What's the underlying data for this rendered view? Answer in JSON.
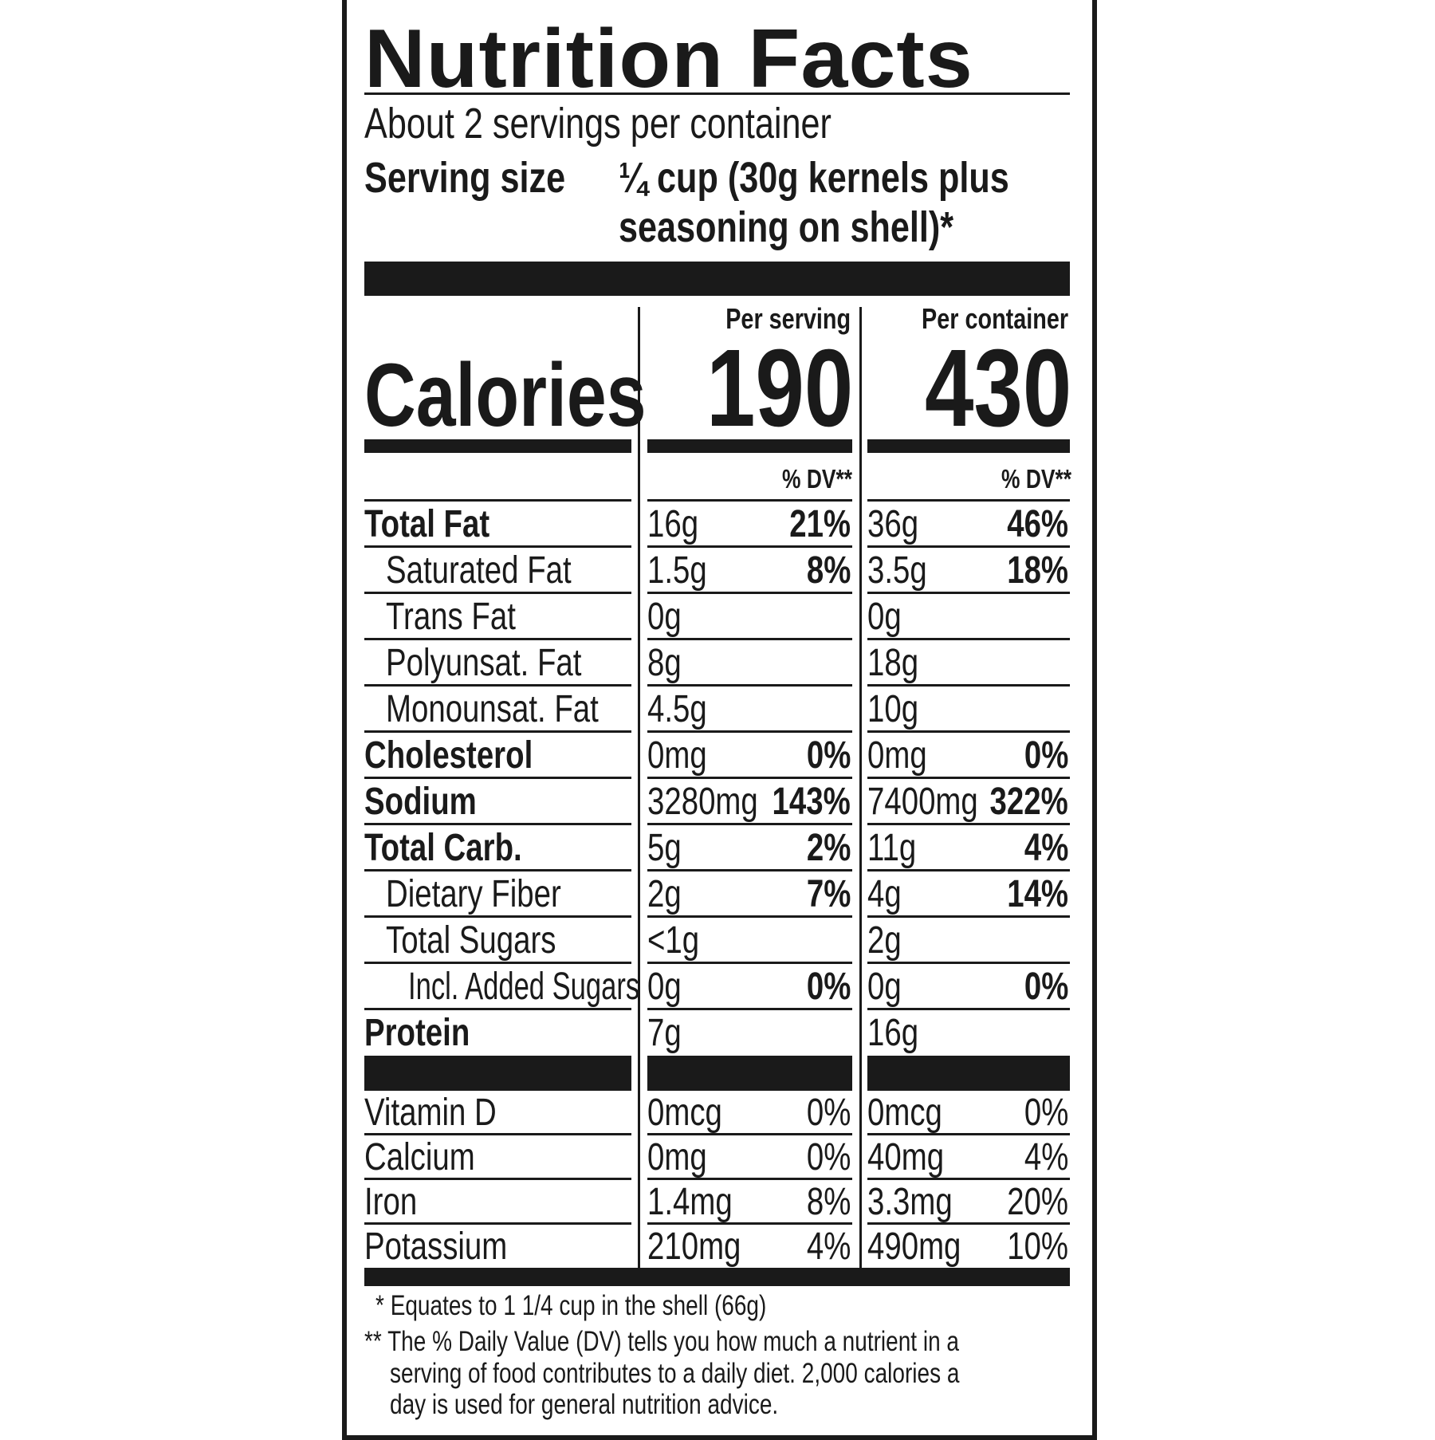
{
  "title": "Nutrition Facts",
  "servings_per_container": "About 2 servings per container",
  "serving_size_label": "Serving size",
  "serving_size_line1": "¼ cup (30g kernels plus",
  "serving_size_line2": "seasoning on shell)*",
  "columns": {
    "per_serving": "Per serving",
    "per_container": "Per container",
    "dv_header": "% DV**"
  },
  "calories": {
    "label": "Calories",
    "per_serving": "190",
    "per_container": "430"
  },
  "nutrients": [
    {
      "name": "Total Fat",
      "bold": true,
      "indent": 0,
      "s_amt": "16g",
      "s_dv": "21%",
      "c_amt": "36g",
      "c_dv": "46%"
    },
    {
      "name": "Saturated Fat",
      "bold": false,
      "indent": 1,
      "s_amt": "1.5g",
      "s_dv": "8%",
      "c_amt": "3.5g",
      "c_dv": "18%"
    },
    {
      "name": "Trans Fat",
      "bold": false,
      "indent": 1,
      "s_amt": "0g",
      "s_dv": "",
      "c_amt": "0g",
      "c_dv": ""
    },
    {
      "name": "Polyunsat. Fat",
      "bold": false,
      "indent": 1,
      "s_amt": "8g",
      "s_dv": "",
      "c_amt": "18g",
      "c_dv": ""
    },
    {
      "name": "Monounsat. Fat",
      "bold": false,
      "indent": 1,
      "s_amt": "4.5g",
      "s_dv": "",
      "c_amt": "10g",
      "c_dv": ""
    },
    {
      "name": "Cholesterol",
      "bold": true,
      "indent": 0,
      "s_amt": "0mg",
      "s_dv": "0%",
      "c_amt": "0mg",
      "c_dv": "0%"
    },
    {
      "name": "Sodium",
      "bold": true,
      "indent": 0,
      "s_amt": "3280mg",
      "s_dv": "143%",
      "c_amt": "7400mg",
      "c_dv": "322%"
    },
    {
      "name": "Total Carb.",
      "bold": true,
      "indent": 0,
      "s_amt": "5g",
      "s_dv": "2%",
      "c_amt": "11g",
      "c_dv": "4%"
    },
    {
      "name": "Dietary Fiber",
      "bold": false,
      "indent": 1,
      "s_amt": "2g",
      "s_dv": "7%",
      "c_amt": "4g",
      "c_dv": "14%"
    },
    {
      "name": "Total Sugars",
      "bold": false,
      "indent": 1,
      "s_amt": "<1g",
      "s_dv": "",
      "c_amt": "2g",
      "c_dv": ""
    },
    {
      "name": "Incl. Added Sugars",
      "bold": false,
      "indent": 2,
      "s_amt": "0g",
      "s_dv": "0%",
      "c_amt": "0g",
      "c_dv": "0%"
    },
    {
      "name": "Protein",
      "bold": true,
      "indent": 0,
      "s_amt": "7g",
      "s_dv": "",
      "c_amt": "16g",
      "c_dv": ""
    }
  ],
  "vitamins": [
    {
      "name": "Vitamin D",
      "s_amt": "0mcg",
      "s_dv": "0%",
      "c_amt": "0mcg",
      "c_dv": "0%"
    },
    {
      "name": "Calcium",
      "s_amt": "0mg",
      "s_dv": "0%",
      "c_amt": "40mg",
      "c_dv": "4%"
    },
    {
      "name": "Iron",
      "s_amt": "1.4mg",
      "s_dv": "8%",
      "c_amt": "3.3mg",
      "c_dv": "20%"
    },
    {
      "name": "Potassium",
      "s_amt": "210mg",
      "s_dv": "4%",
      "c_amt": "490mg",
      "c_dv": "10%"
    }
  ],
  "footnotes": {
    "star1_mark": "*",
    "star1": "Equates to 1 1/4 cup in the shell (66g)",
    "star2_mark": "**",
    "star2_lines": [
      "The % Daily Value (DV) tells you how much a nutrient in a",
      "serving of food contributes to a daily diet. 2,000 calories a",
      "day is used for general nutrition advice."
    ]
  }
}
